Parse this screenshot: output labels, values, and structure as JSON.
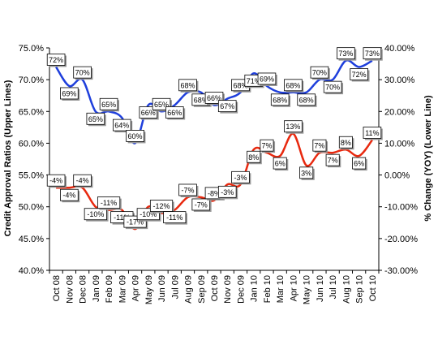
{
  "chart_data": {
    "type": "line",
    "title": "",
    "categories": [
      "Oct 08",
      "Nov 08",
      "Dec 08",
      "Jan 09",
      "Feb 09",
      "Mar 09",
      "Apr 09",
      "May 09",
      "Jun 09",
      "Jul 09",
      "Aug 09",
      "Sep 09",
      "Oct 09",
      "Nov 09",
      "Dec 09",
      "Jan 10",
      "Feb 10",
      "Mar 10",
      "Apr 10",
      "May 10",
      "Jun 10",
      "Jul 10",
      "Aug 10",
      "Sep 10",
      "Oct 10"
    ],
    "y_left": {
      "label": "Credit Approval Ratios (Upper Lines)",
      "ylim": [
        40,
        75
      ],
      "ticks": [
        "40.0%",
        "45.0%",
        "50.0%",
        "55.0%",
        "60.0%",
        "65.0%",
        "70.0%",
        "75.0%"
      ]
    },
    "y_right": {
      "label": "% Change (YOY) (Lower Line)",
      "ylim": [
        -30,
        40
      ],
      "ticks": [
        "-30.00%",
        "-20.00%",
        "-10.00%",
        "0.00%",
        "10.00%",
        "20.00%",
        "30.00%",
        "40.00%"
      ]
    },
    "grid": false,
    "legend": "none",
    "series": [
      {
        "axis": "left",
        "color": "#1f3fdc",
        "values": [
          72,
          69,
          70,
          65,
          65,
          64,
          60,
          66,
          65,
          66,
          68,
          68,
          66,
          67,
          68,
          71,
          69,
          68,
          68,
          68,
          70,
          70,
          73,
          72,
          73
        ],
        "labels": [
          "72%",
          "69%",
          "70%",
          "65%",
          "65%",
          "64%",
          "60%",
          "66%",
          "65%",
          "66%",
          "68%",
          "68%",
          "66%",
          "67%",
          "68%",
          "71%",
          "69%",
          "68%",
          "68%",
          "68%",
          "70%",
          "70%",
          "73%",
          "72%",
          "73%"
        ]
      },
      {
        "axis": "right",
        "color": "#e8290f",
        "values": [
          -4,
          -4,
          -4,
          -10,
          -11,
          -11,
          -17,
          -10,
          -12,
          -11,
          -7,
          -7,
          -8,
          -3,
          -3,
          8,
          7,
          6,
          13,
          3,
          7,
          7,
          8,
          6,
          11
        ],
        "labels": [
          "-4%",
          "-4%",
          "-4%",
          "-10%",
          "-11%",
          "-11%",
          "-17%",
          "-10%",
          "-12%",
          "-11%",
          "-7%",
          "-7%",
          "-8%",
          "-3%",
          "-3%",
          "8%",
          "7%",
          "6%",
          "13%",
          "3%",
          "7%",
          "7%",
          "8%",
          "6%",
          "11%"
        ]
      }
    ]
  }
}
